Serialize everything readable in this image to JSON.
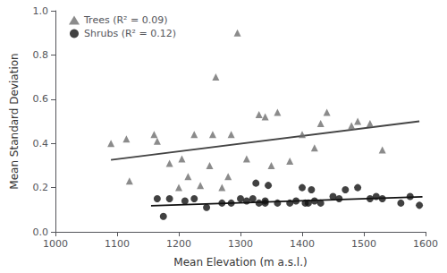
{
  "chart_data": {
    "type": "scatter",
    "xlabel": "Mean Elevation (m a.s.l.)",
    "ylabel": "Mean Standard Deviation",
    "xlim": [
      1000,
      1600
    ],
    "ylim": [
      0.0,
      1.0
    ],
    "xticks": [
      1000,
      1100,
      1200,
      1300,
      1400,
      1500,
      1600
    ],
    "yticks": [
      {
        "value": 0.0,
        "label": "0.0"
      },
      0.2,
      0.4,
      0.6,
      0.8,
      {
        "value": 1.0,
        "label": "1.0"
      }
    ],
    "grid": false,
    "legend": "upper left",
    "series": [
      {
        "name": "Trees (R² = 0.09)",
        "type": "scatter",
        "marker": "triangle",
        "color": "#6e6e6e",
        "x": [
          1090,
          1115,
          1120,
          1160,
          1165,
          1185,
          1200,
          1205,
          1215,
          1225,
          1235,
          1250,
          1255,
          1260,
          1270,
          1280,
          1285,
          1295,
          1310,
          1330,
          1340,
          1350,
          1360,
          1380,
          1400,
          1420,
          1430,
          1440,
          1480,
          1490,
          1510,
          1530
        ],
        "values": [
          0.4,
          0.42,
          0.23,
          0.44,
          0.41,
          0.31,
          0.2,
          0.33,
          0.25,
          0.44,
          0.21,
          0.3,
          0.44,
          0.7,
          0.2,
          0.25,
          0.44,
          0.9,
          0.33,
          0.53,
          0.52,
          0.3,
          0.54,
          0.32,
          0.44,
          0.38,
          0.49,
          0.54,
          0.48,
          0.5,
          0.49,
          0.37
        ]
      },
      {
        "name": "Shrubs (R² = 0.12)",
        "type": "scatter",
        "marker": "circle",
        "color": "#111111",
        "x": [
          1165,
          1175,
          1185,
          1210,
          1225,
          1245,
          1270,
          1285,
          1300,
          1310,
          1320,
          1325,
          1330,
          1340,
          1340,
          1345,
          1360,
          1380,
          1390,
          1400,
          1405,
          1410,
          1415,
          1420,
          1430,
          1450,
          1460,
          1470,
          1490,
          1510,
          1520,
          1530,
          1560,
          1575,
          1590
        ],
        "values": [
          0.15,
          0.07,
          0.15,
          0.14,
          0.15,
          0.11,
          0.13,
          0.13,
          0.15,
          0.14,
          0.15,
          0.22,
          0.13,
          0.14,
          0.13,
          0.21,
          0.13,
          0.13,
          0.14,
          0.2,
          0.13,
          0.13,
          0.19,
          0.14,
          0.13,
          0.16,
          0.15,
          0.19,
          0.2,
          0.15,
          0.16,
          0.15,
          0.13,
          0.16,
          0.12
        ]
      },
      {
        "type": "line",
        "color": "#444444",
        "x": [
          1090,
          1590
        ],
        "values": [
          0.325,
          0.5
        ]
      },
      {
        "type": "line",
        "color": "#111111",
        "x": [
          1155,
          1595
        ],
        "values": [
          0.118,
          0.158
        ]
      }
    ]
  }
}
